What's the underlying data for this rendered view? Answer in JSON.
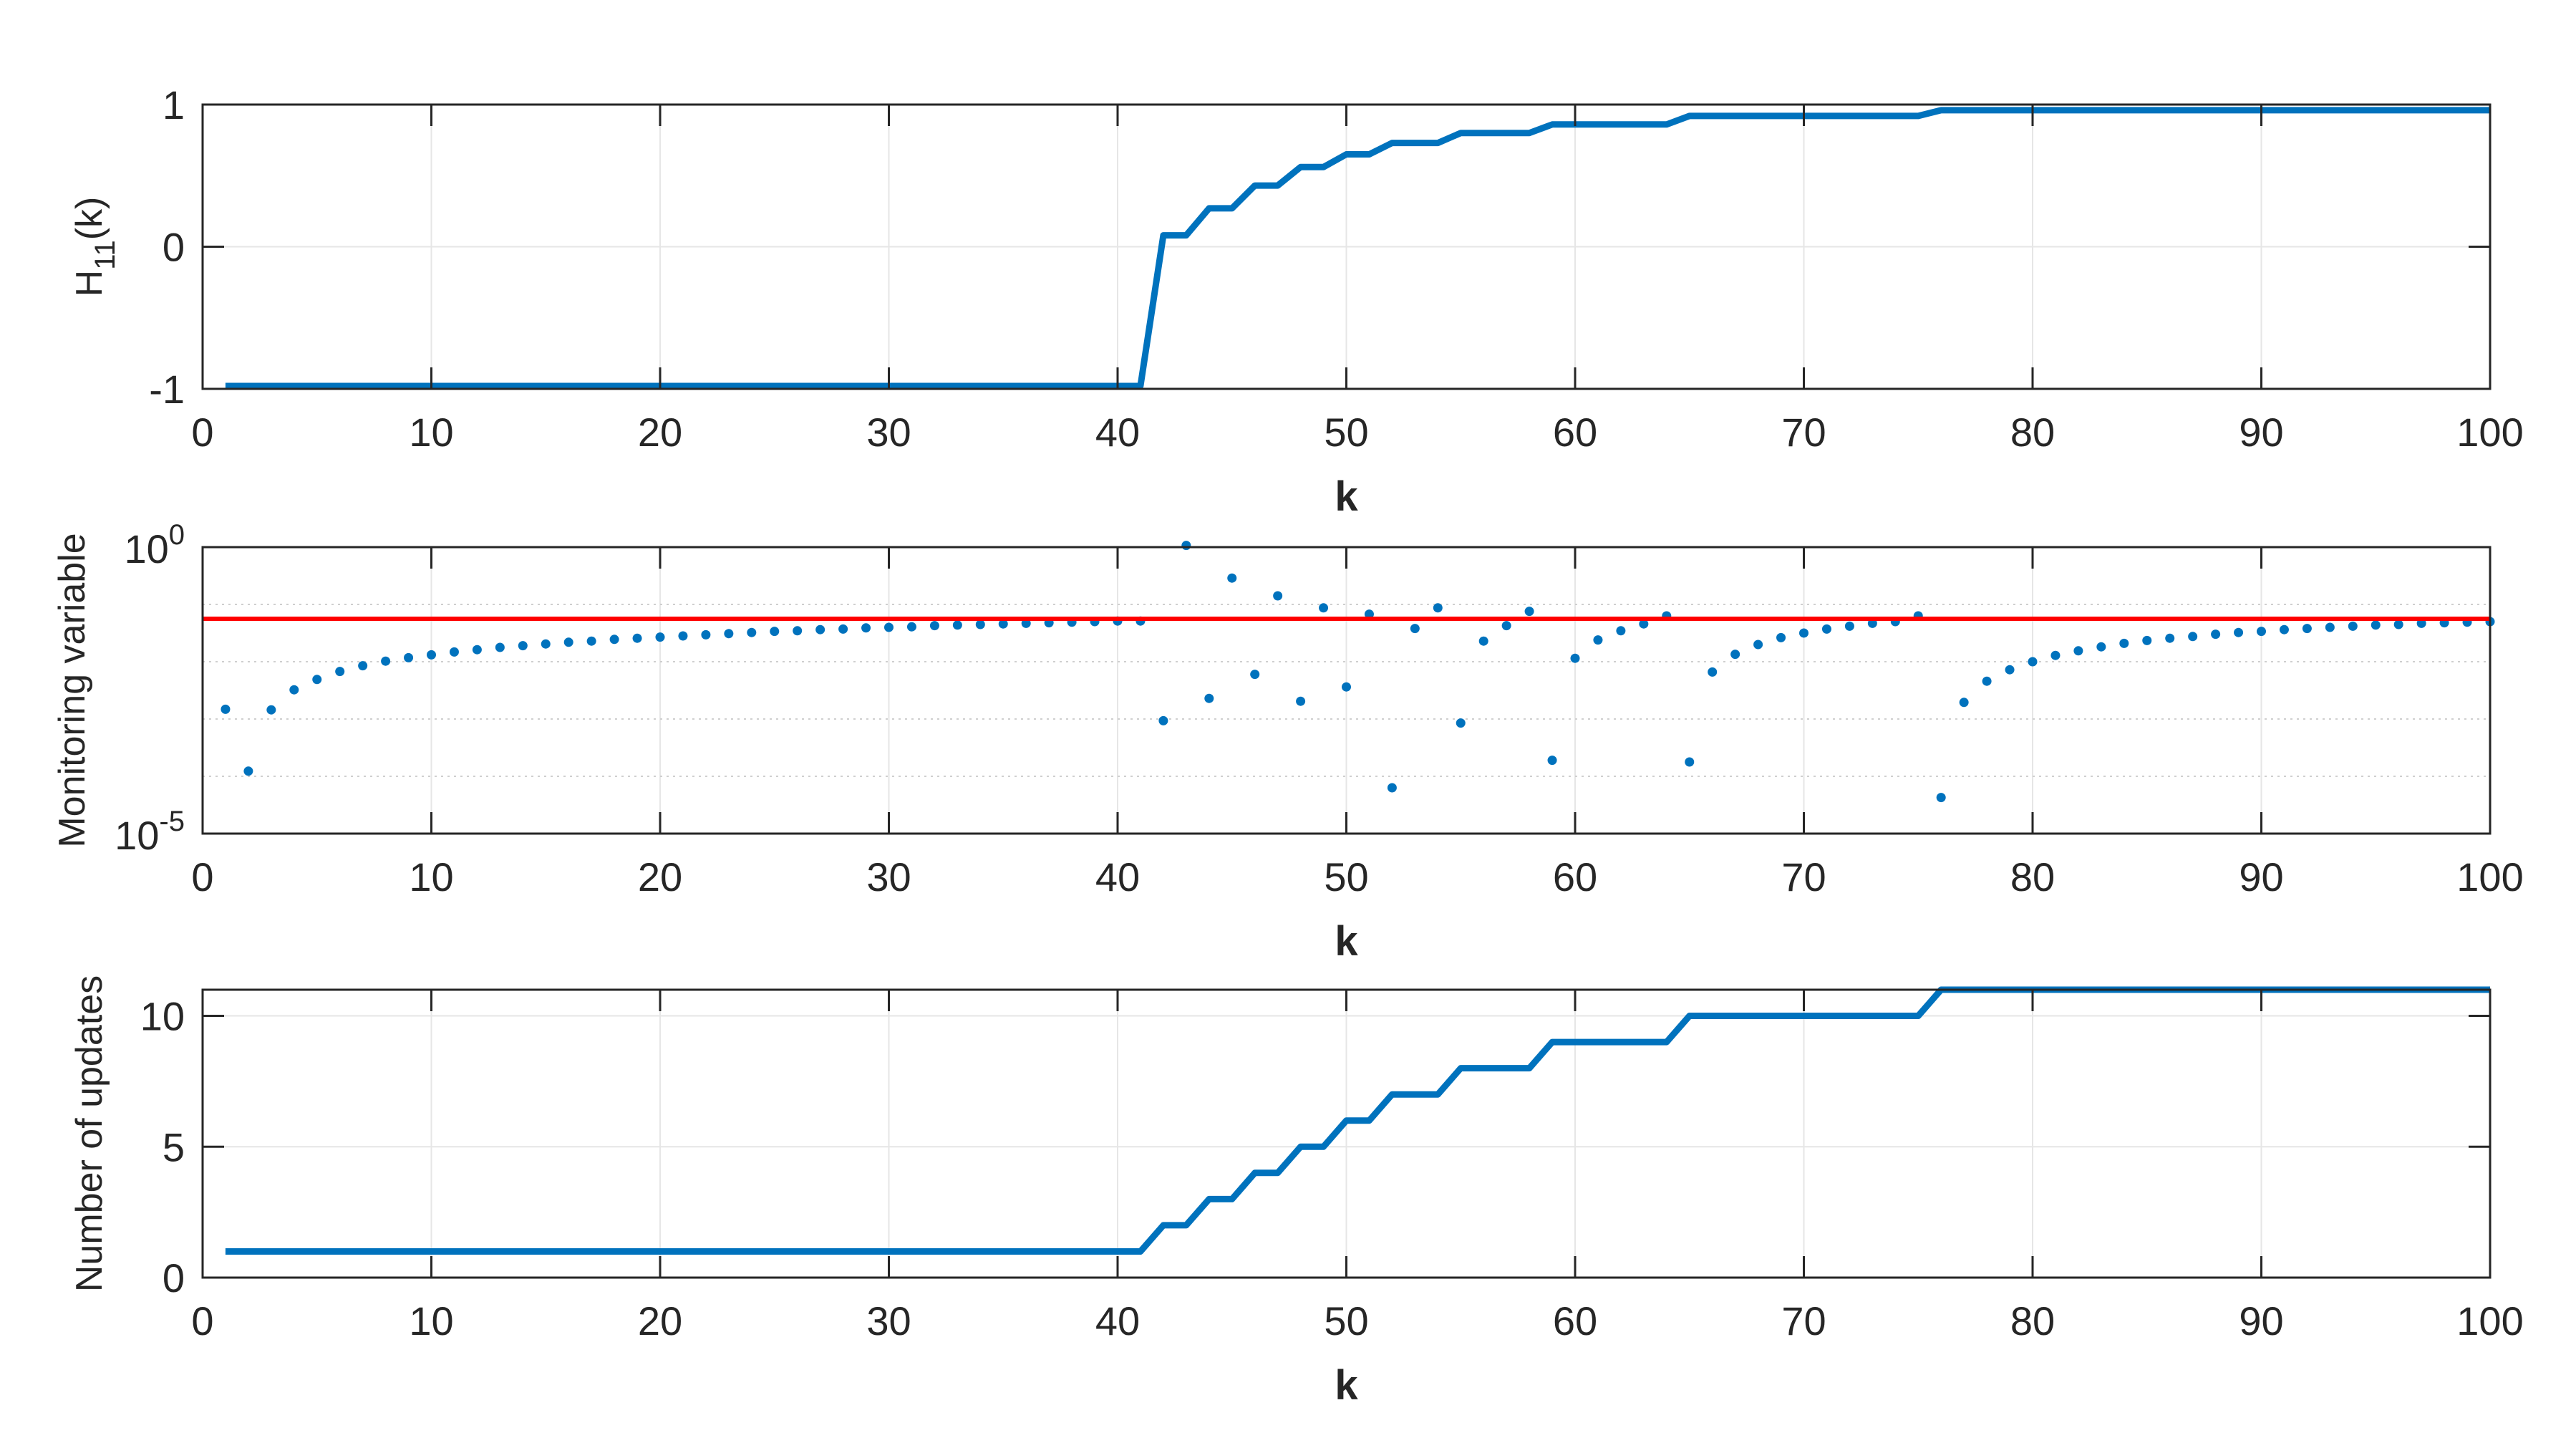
{
  "chart_data": [
    {
      "type": "line",
      "xlabel": "k",
      "ylabel_main": "H",
      "ylabel_sub": "11",
      "ylabel_tail": "(k)",
      "xlim": [
        0,
        100
      ],
      "ylim": [
        -1,
        1
      ],
      "xticks": [
        0,
        10,
        20,
        30,
        40,
        50,
        60,
        70,
        80,
        90,
        100
      ],
      "xtick_labels": [
        "0",
        "10",
        "20",
        "30",
        "40",
        "50",
        "60",
        "70",
        "80",
        "90",
        "100"
      ],
      "yticks": [
        -1,
        0,
        1
      ],
      "ytick_labels": [
        "-1",
        "0",
        "1"
      ],
      "grid": true,
      "line_color": "#0072BD",
      "series": [
        {
          "x": [
            1,
            41,
            42,
            43,
            44,
            45,
            46,
            47,
            48,
            49,
            50,
            51,
            52,
            53,
            54,
            55,
            56,
            57,
            58,
            59,
            64,
            65,
            75,
            76,
            100
          ],
          "y": [
            -0.98,
            -0.98,
            0.08,
            0.08,
            0.27,
            0.27,
            0.43,
            0.43,
            0.56,
            0.56,
            0.65,
            0.65,
            0.73,
            0.73,
            0.73,
            0.8,
            0.8,
            0.8,
            0.8,
            0.86,
            0.86,
            0.92,
            0.92,
            0.96,
            0.96
          ]
        }
      ]
    },
    {
      "type": "scatter",
      "xlabel": "k",
      "ylabel": "Monitoring variable",
      "xlim": [
        0,
        100
      ],
      "ylim": [
        -5,
        0
      ],
      "yscale": "log",
      "xticks": [
        0,
        10,
        20,
        30,
        40,
        50,
        60,
        70,
        80,
        90,
        100
      ],
      "xtick_labels": [
        "0",
        "10",
        "20",
        "30",
        "40",
        "50",
        "60",
        "70",
        "80",
        "90",
        "100"
      ],
      "yticks": [
        0,
        -5
      ],
      "ytick_labels": [
        {
          "base": "10",
          "exp": "0"
        },
        {
          "base": "10",
          "exp": "-5"
        }
      ],
      "minor_grid_y": [
        -1,
        -2,
        -3,
        -4
      ],
      "grid": true,
      "point_color": "#0072BD",
      "threshold": -1.25,
      "threshold_color": "#FF0000",
      "series": [
        {
          "x": [
            1,
            2,
            3,
            4,
            5,
            6,
            7,
            8,
            9,
            10,
            11,
            12,
            13,
            14,
            15,
            16,
            17,
            18,
            19,
            20,
            21,
            22,
            23,
            24,
            25,
            26,
            27,
            28,
            29,
            30,
            31,
            32,
            33,
            34,
            35,
            36,
            37,
            38,
            39,
            40,
            41,
            42,
            43,
            44,
            45,
            46,
            47,
            48,
            49,
            50,
            51,
            52,
            53,
            54,
            55,
            56,
            57,
            58,
            59,
            60,
            61,
            62,
            63,
            64,
            65,
            66,
            67,
            68,
            69,
            70,
            71,
            72,
            73,
            74,
            75,
            76,
            77,
            78,
            79,
            80,
            81,
            82,
            83,
            84,
            85,
            86,
            87,
            88,
            89,
            90,
            91,
            92,
            93,
            94,
            95,
            96,
            97,
            98,
            99,
            100
          ],
          "y": [
            -2.83,
            -3.91,
            -2.84,
            -2.49,
            -2.31,
            -2.17,
            -2.07,
            -1.99,
            -1.93,
            -1.88,
            -1.83,
            -1.79,
            -1.75,
            -1.72,
            -1.69,
            -1.66,
            -1.64,
            -1.61,
            -1.59,
            -1.57,
            -1.55,
            -1.53,
            -1.51,
            -1.49,
            -1.47,
            -1.46,
            -1.44,
            -1.43,
            -1.41,
            -1.4,
            -1.39,
            -1.37,
            -1.36,
            -1.35,
            -1.34,
            -1.33,
            -1.32,
            -1.31,
            -1.3,
            -1.29,
            -1.29,
            -3.03,
            0.03,
            -2.64,
            -0.54,
            -2.22,
            -0.85,
            -2.69,
            -1.06,
            -2.44,
            -1.17,
            -4.2,
            -1.42,
            -1.06,
            -3.07,
            -1.64,
            -1.37,
            -1.12,
            -3.72,
            -1.94,
            -1.62,
            -1.46,
            -1.34,
            -1.2,
            -3.75,
            -2.18,
            -1.87,
            -1.7,
            -1.58,
            -1.5,
            -1.43,
            -1.38,
            -1.33,
            -1.3,
            -1.2,
            -4.37,
            -2.71,
            -2.34,
            -2.14,
            -2.0,
            -1.89,
            -1.81,
            -1.74,
            -1.68,
            -1.63,
            -1.59,
            -1.56,
            -1.52,
            -1.49,
            -1.47,
            -1.44,
            -1.42,
            -1.4,
            -1.38,
            -1.36,
            -1.35,
            -1.33,
            -1.32,
            -1.31,
            -1.3
          ]
        }
      ]
    },
    {
      "type": "line",
      "xlabel": "k",
      "ylabel": "Number of updates",
      "xlim": [
        0,
        100
      ],
      "ylim": [
        0,
        11
      ],
      "xticks": [
        0,
        10,
        20,
        30,
        40,
        50,
        60,
        70,
        80,
        90,
        100
      ],
      "xtick_labels": [
        "0",
        "10",
        "20",
        "30",
        "40",
        "50",
        "60",
        "70",
        "80",
        "90",
        "100"
      ],
      "yticks": [
        0,
        5,
        10
      ],
      "ytick_labels": [
        "0",
        "5",
        "10"
      ],
      "grid": true,
      "line_color": "#0072BD",
      "series": [
        {
          "x": [
            1,
            41,
            42,
            43,
            44,
            45,
            46,
            47,
            48,
            49,
            50,
            51,
            52,
            53,
            54,
            55,
            56,
            57,
            58,
            59,
            64,
            65,
            75,
            76,
            100
          ],
          "y": [
            1,
            1,
            2,
            2,
            3,
            3,
            4,
            4,
            5,
            5,
            6,
            6,
            7,
            7,
            7,
            8,
            8,
            8,
            8,
            9,
            9,
            10,
            10,
            11,
            11
          ]
        }
      ]
    }
  ]
}
